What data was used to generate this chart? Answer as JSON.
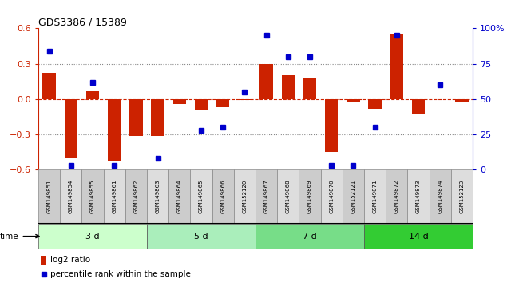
{
  "title": "GDS3386 / 15389",
  "samples": [
    "GSM149851",
    "GSM149854",
    "GSM149855",
    "GSM149861",
    "GSM149862",
    "GSM149863",
    "GSM149864",
    "GSM149865",
    "GSM149866",
    "GSM152120",
    "GSM149867",
    "GSM149868",
    "GSM149869",
    "GSM149870",
    "GSM152121",
    "GSM149871",
    "GSM149872",
    "GSM149873",
    "GSM149874",
    "GSM152123"
  ],
  "log2_ratio": [
    0.22,
    -0.5,
    0.07,
    -0.52,
    -0.31,
    -0.31,
    -0.04,
    -0.09,
    -0.07,
    -0.01,
    0.3,
    0.2,
    0.18,
    -0.45,
    -0.03,
    -0.08,
    0.55,
    -0.12,
    0.0,
    -0.03
  ],
  "percentile_vals": [
    84,
    3,
    62,
    3,
    null,
    8,
    null,
    28,
    30,
    55,
    95,
    80,
    80,
    3,
    3,
    30,
    95,
    null,
    60,
    null
  ],
  "groups": [
    {
      "label": "3 d",
      "start": 0,
      "end": 5,
      "color": "#ccffcc"
    },
    {
      "label": "5 d",
      "start": 5,
      "end": 10,
      "color": "#aaeebb"
    },
    {
      "label": "7 d",
      "start": 10,
      "end": 15,
      "color": "#77dd88"
    },
    {
      "label": "14 d",
      "start": 15,
      "end": 20,
      "color": "#33cc33"
    }
  ],
  "ylim_left": [
    -0.6,
    0.6
  ],
  "ylim_right": [
    0,
    100
  ],
  "yticks_left": [
    -0.6,
    -0.3,
    0.0,
    0.3,
    0.6
  ],
  "yticks_right": [
    0,
    25,
    50,
    75,
    100
  ],
  "ytick_labels_right": [
    "0",
    "25",
    "50",
    "75",
    "100%"
  ],
  "bar_color": "#cc2200",
  "dot_color": "#0000cc",
  "bg_color": "#ffffff",
  "tick_color_left": "#cc2200",
  "tick_color_right": "#0000cc",
  "legend_log2": "log2 ratio",
  "legend_pct": "percentile rank within the sample",
  "label_bg_odd": "#cccccc",
  "label_bg_even": "#dddddd"
}
